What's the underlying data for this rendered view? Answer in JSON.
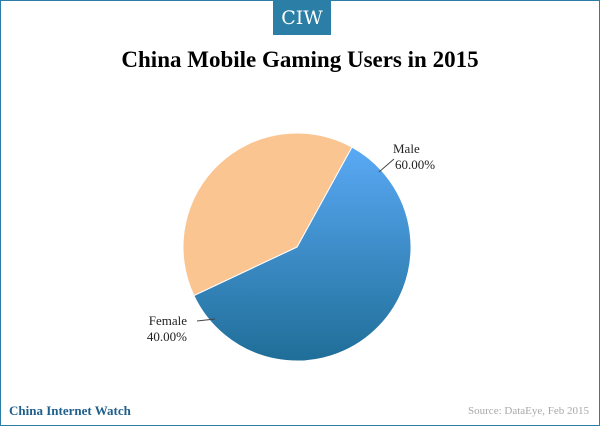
{
  "brand": {
    "tab_label": "CIW",
    "footer_name": "China Internet Watch"
  },
  "source_note": "Source: DataEye, Feb 2015",
  "colors": {
    "frame": "#2b7ea6",
    "male_light": "#5aa9f5",
    "male_dark": "#1f6e98",
    "female": "#fbc592",
    "footer_text": "#1f5f8b",
    "source_text": "#a8a8a8"
  },
  "chart_data": {
    "type": "pie",
    "title": "China Mobile Gaming Users in 2015",
    "categories": [
      "Male",
      "Female"
    ],
    "values": [
      60.0,
      40.0
    ],
    "value_labels": [
      "60.00%",
      "40.00%"
    ],
    "legend": "none",
    "labels_outside": true
  }
}
